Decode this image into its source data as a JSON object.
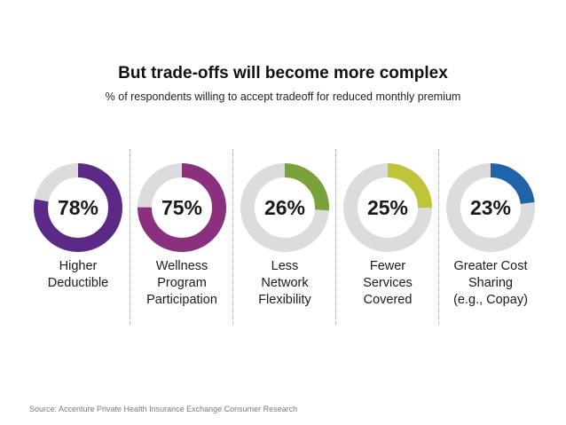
{
  "title": "But trade-offs will become more complex",
  "subtitle": "% of respondents willing to accept tradeoff for reduced monthly premium",
  "source": "Source: Accenture Private Health Insurance Exchange Consumer Research",
  "chart_data": {
    "type": "pie",
    "unit": "%",
    "track_color": "#dcdcdc",
    "categories": [
      "Higher Deductible",
      "Wellness Program Participation",
      "Less Network Flexibility",
      "Fewer Services Covered",
      "Greater Cost Sharing (e.g., Copay)"
    ],
    "items": [
      {
        "value": 78,
        "value_label": "78%",
        "label_lines": [
          "Higher",
          "Deductible"
        ],
        "color": "#5b2a86"
      },
      {
        "value": 75,
        "value_label": "75%",
        "label_lines": [
          "Wellness",
          "Program",
          "Participation"
        ],
        "color": "#8b2f7f"
      },
      {
        "value": 26,
        "value_label": "26%",
        "label_lines": [
          "Less",
          "Network",
          "Flexibility"
        ],
        "color": "#7aa23a"
      },
      {
        "value": 25,
        "value_label": "25%",
        "label_lines": [
          "Fewer",
          "Services",
          "Covered"
        ],
        "color": "#bfc43a"
      },
      {
        "value": 23,
        "value_label": "23%",
        "label_lines": [
          "Greater Cost",
          "Sharing",
          "(e.g., Copay)"
        ],
        "color": "#1f63a8"
      }
    ]
  }
}
